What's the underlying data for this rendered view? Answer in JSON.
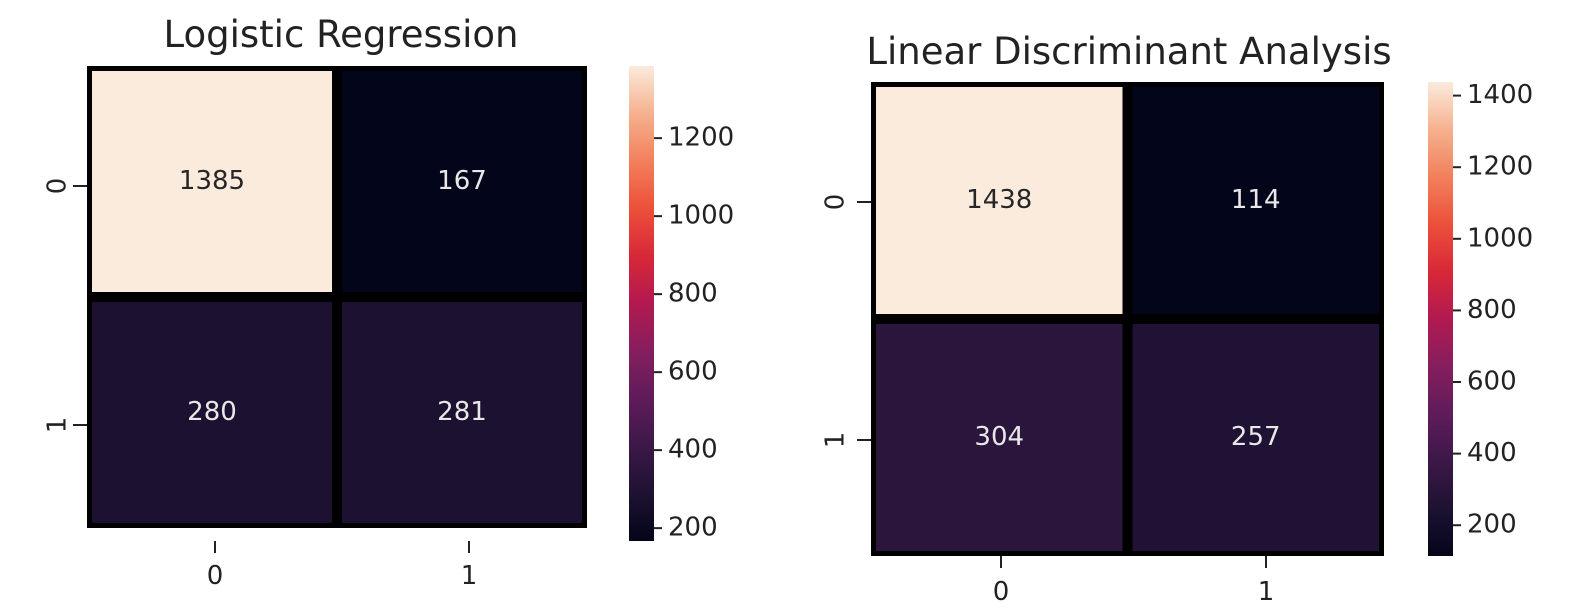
{
  "chart_data": [
    {
      "type": "heatmap",
      "title": "Logistic Regression",
      "x_categories": [
        "0",
        "1"
      ],
      "y_categories": [
        "0",
        "1"
      ],
      "values": [
        [
          1385,
          167
        ],
        [
          280,
          281
        ]
      ],
      "annotations": [
        "1385",
        "167",
        "280",
        "281"
      ],
      "colorscale": "rocket",
      "colorbar": {
        "range": [
          167,
          1385
        ],
        "ticks": [
          200,
          400,
          600,
          800,
          1000,
          1200
        ],
        "tick_labels": [
          "200",
          "400",
          "600",
          "800",
          "1000",
          "1200"
        ]
      },
      "cell_separator_color": "#000000"
    },
    {
      "type": "heatmap",
      "title": "Linear Discriminant Analysis",
      "x_categories": [
        "0",
        "1"
      ],
      "y_categories": [
        "0",
        "1"
      ],
      "values": [
        [
          1438,
          114
        ],
        [
          304,
          257
        ]
      ],
      "annotations": [
        "1438",
        "114",
        "304",
        "257"
      ],
      "colorscale": "rocket",
      "colorbar": {
        "range": [
          114,
          1438
        ],
        "ticks": [
          200,
          400,
          600,
          800,
          1000,
          1200,
          1400
        ],
        "tick_labels": [
          "200",
          "400",
          "600",
          "800",
          "1000",
          "1200",
          "1400"
        ]
      },
      "cell_separator_color": "#000000"
    }
  ]
}
